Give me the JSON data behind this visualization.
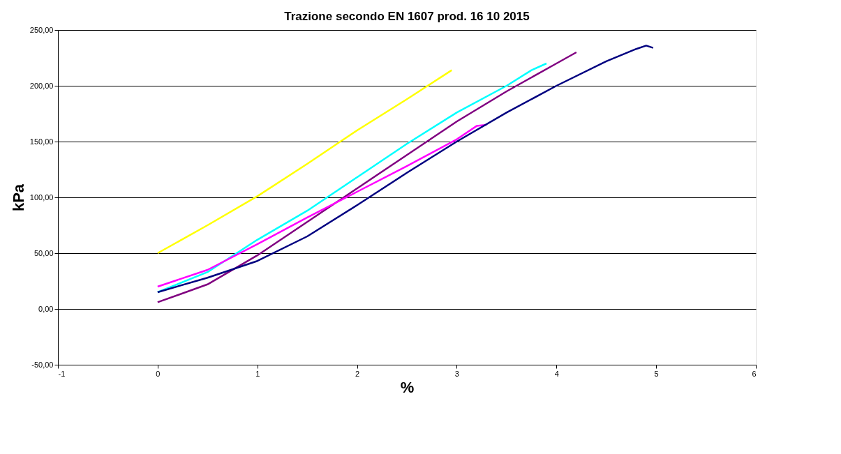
{
  "chart_data": {
    "type": "line",
    "title": "Trazione secondo EN 1607 prod. 16 10 2015",
    "xlabel": "%",
    "ylabel": "kPa",
    "xlim": [
      -1,
      6
    ],
    "xticks": [
      -1,
      0,
      1,
      2,
      3,
      4,
      5,
      6
    ],
    "ylim": [
      -50,
      250
    ],
    "yticks": [
      {
        "value": -50,
        "label": "-50,00"
      },
      {
        "value": 0,
        "label": "0,00"
      },
      {
        "value": 50,
        "label": "50,00"
      },
      {
        "value": 100,
        "label": "100,00"
      },
      {
        "value": 150,
        "label": "150,00"
      },
      {
        "value": 200,
        "label": "200,00"
      },
      {
        "value": 250,
        "label": "250,00"
      }
    ],
    "grid": "y",
    "legend": false,
    "marker": "none",
    "line_style": "solid",
    "series": [
      {
        "color": "#ffff00",
        "x": [
          0,
          0.5,
          1,
          1.5,
          2,
          2.5,
          2.95
        ],
        "values": [
          50,
          75,
          101,
          130,
          160,
          188,
          214
        ]
      },
      {
        "color": "#00ffff",
        "x": [
          0,
          0.5,
          1,
          1.5,
          2,
          2.5,
          3,
          3.5,
          3.75,
          3.9
        ],
        "values": [
          15,
          33,
          62,
          88,
          118,
          148,
          176,
          200,
          214,
          220
        ]
      },
      {
        "color": "#800080",
        "x": [
          0,
          0.5,
          1,
          1.5,
          2,
          2.5,
          3,
          3.5,
          4,
          4.2
        ],
        "values": [
          6,
          22,
          48,
          78,
          108,
          138,
          168,
          195,
          220,
          230
        ]
      },
      {
        "color": "#ff00ff",
        "x": [
          0,
          0.5,
          1,
          1.5,
          2,
          2.5,
          3,
          3.2,
          3.3
        ],
        "values": [
          20,
          35,
          58,
          82,
          105,
          128,
          152,
          164,
          165
        ]
      },
      {
        "color": "#000080",
        "x": [
          0,
          0.5,
          1,
          1.5,
          2,
          2.5,
          3,
          3.5,
          4,
          4.5,
          4.8,
          4.9,
          4.97
        ],
        "values": [
          15,
          28,
          43,
          65,
          93,
          122,
          150,
          176,
          200,
          222,
          233,
          236,
          234
        ]
      }
    ]
  }
}
